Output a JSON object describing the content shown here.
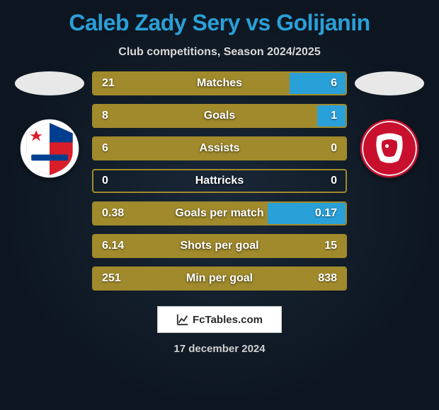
{
  "title": "Caleb Zady Sery vs Golijanin",
  "subtitle": "Club competitions, Season 2024/2025",
  "date": "17 december 2024",
  "footer_label": "FcTables.com",
  "colors": {
    "left_fill": "#a08a2c",
    "right_fill": "#2aa0d8",
    "border": "#a08a2c",
    "title": "#2aa0d8"
  },
  "left_team": {
    "name": "Vojvodina",
    "crest_primary": "#d91e2a",
    "crest_secondary": "#ffffff",
    "crest_accent": "#003f8f"
  },
  "right_team": {
    "name": "Radnicki",
    "crest_primary": "#c8102e",
    "crest_secondary": "#ffffff"
  },
  "rows": [
    {
      "label": "Matches",
      "left": "21",
      "right": "6",
      "left_pct": 77.8,
      "right_pct": 22.2
    },
    {
      "label": "Goals",
      "left": "8",
      "right": "1",
      "left_pct": 88.9,
      "right_pct": 11.1
    },
    {
      "label": "Assists",
      "left": "6",
      "right": "0",
      "left_pct": 100,
      "right_pct": 0
    },
    {
      "label": "Hattricks",
      "left": "0",
      "right": "0",
      "left_pct": 0,
      "right_pct": 0
    },
    {
      "label": "Goals per match",
      "left": "0.38",
      "right": "0.17",
      "left_pct": 69.1,
      "right_pct": 30.9
    },
    {
      "label": "Shots per goal",
      "left": "6.14",
      "right": "15",
      "left_pct": 100,
      "right_pct": 0
    },
    {
      "label": "Min per goal",
      "left": "251",
      "right": "838",
      "left_pct": 100,
      "right_pct": 0
    }
  ]
}
